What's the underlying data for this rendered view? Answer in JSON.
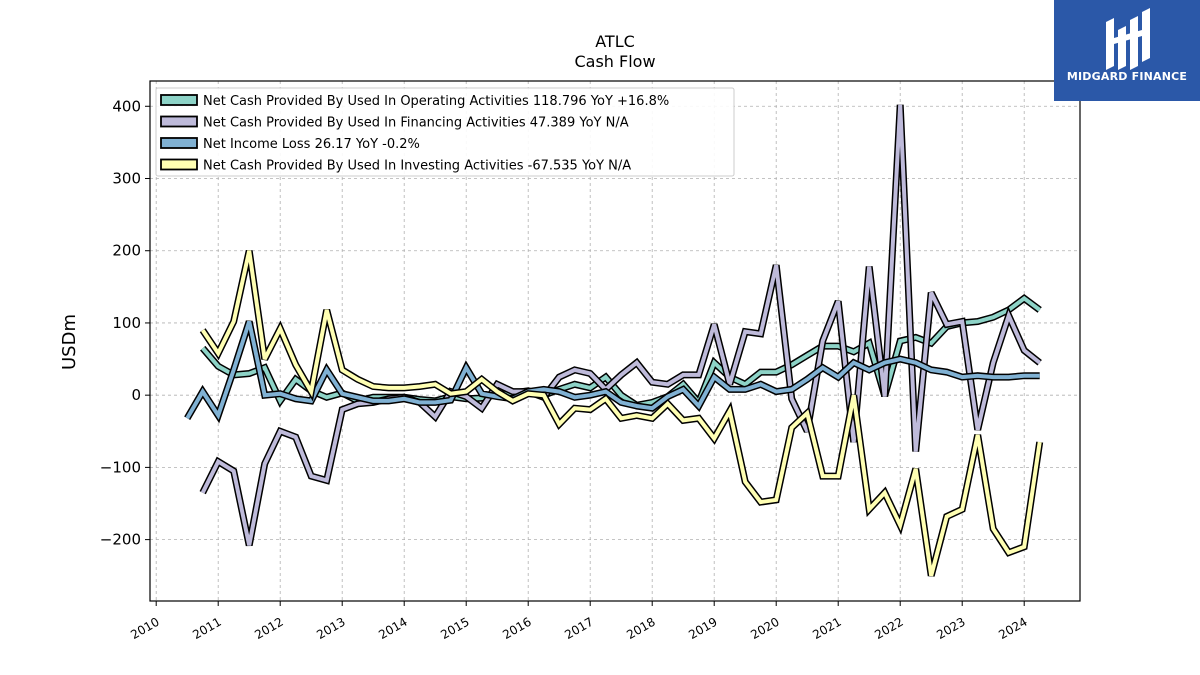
{
  "brand": {
    "name": "MIDGARD FINANCE",
    "bg_color": "#2b58a8"
  },
  "chart_data": {
    "type": "line",
    "title": "ATLC",
    "subtitle": "Cash Flow",
    "xlabel": "",
    "ylabel": "USDm",
    "xlim": [
      2009.9,
      2024.9
    ],
    "ylim": [
      -285,
      435
    ],
    "x_ticks": [
      "2010",
      "2011",
      "2012",
      "2013",
      "2014",
      "2015",
      "2016",
      "2017",
      "2018",
      "2019",
      "2020",
      "2021",
      "2022",
      "2023",
      "2024"
    ],
    "y_ticks": [
      -200,
      -100,
      0,
      100,
      200,
      300,
      400
    ],
    "y_tick_labels": [
      "−200",
      "−100",
      "0",
      "100",
      "200",
      "300",
      "400"
    ],
    "grid": true,
    "legend_position": "top-left",
    "series": [
      {
        "name": "Net Cash Provided By Used In Operating Activities",
        "legend": "Net Cash Provided By Used In Operating Activities  118.796 YoY +16.8%",
        "color": "#8dd3c7",
        "x": [
          2010.75,
          2011.0,
          2011.25,
          2011.5,
          2011.75,
          2012.0,
          2012.25,
          2012.5,
          2012.75,
          2013.0,
          2013.25,
          2013.5,
          2013.75,
          2014.0,
          2014.25,
          2014.5,
          2014.75,
          2015.0,
          2015.25,
          2015.5,
          2015.75,
          2016.0,
          2016.25,
          2016.5,
          2016.75,
          2017.0,
          2017.25,
          2017.5,
          2017.75,
          2018.0,
          2018.25,
          2018.5,
          2018.75,
          2019.0,
          2019.25,
          2019.5,
          2019.75,
          2020.0,
          2020.25,
          2020.5,
          2020.75,
          2021.0,
          2021.25,
          2021.5,
          2021.75,
          2022.0,
          2022.25,
          2022.5,
          2022.75,
          2023.0,
          2023.25,
          2023.5,
          2023.75,
          2024.0,
          2024.25
        ],
        "y": [
          65,
          40,
          28,
          30,
          38,
          -8,
          22,
          6,
          -3,
          3,
          -8,
          -3,
          -3,
          -3,
          -6,
          -8,
          -2,
          -5,
          -4,
          1,
          3,
          6,
          0,
          8,
          15,
          10,
          25,
          0,
          -14,
          -10,
          -2,
          15,
          -10,
          45,
          25,
          15,
          32,
          32,
          42,
          55,
          68,
          68,
          60,
          72,
          -1,
          75,
          80,
          72,
          95,
          100,
          102,
          108,
          118,
          134,
          118
        ]
      },
      {
        "name": "Net Cash Provided By Used In Financing Activities",
        "legend": "Net Cash Provided By Used In Financing Activities  47.389 YoY N/A",
        "color": "#bebada",
        "x": [
          2010.75,
          2011.0,
          2011.25,
          2011.5,
          2011.75,
          2012.0,
          2012.25,
          2012.5,
          2012.75,
          2013.0,
          2013.25,
          2013.5,
          2013.75,
          2014.0,
          2014.25,
          2014.5,
          2014.75,
          2015.0,
          2015.25,
          2015.5,
          2015.75,
          2016.0,
          2016.25,
          2016.5,
          2016.75,
          2017.0,
          2017.25,
          2017.5,
          2017.75,
          2018.0,
          2018.25,
          2018.5,
          2018.75,
          2019.0,
          2019.25,
          2019.5,
          2019.75,
          2020.0,
          2020.25,
          2020.5,
          2020.75,
          2021.0,
          2021.25,
          2021.5,
          2021.75,
          2022.0,
          2022.25,
          2022.5,
          2022.75,
          2023.0,
          2023.25,
          2023.5,
          2023.75,
          2024.0,
          2024.25
        ],
        "y": [
          -135,
          -92,
          -105,
          -208,
          -95,
          -50,
          -58,
          -112,
          -118,
          -20,
          -12,
          -10,
          -5,
          -3,
          -10,
          -30,
          5,
          -2,
          -18,
          15,
          5,
          5,
          -3,
          25,
          35,
          30,
          8,
          28,
          45,
          18,
          15,
          28,
          28,
          98,
          15,
          88,
          85,
          180,
          -5,
          -50,
          75,
          130,
          -65,
          178,
          -2,
          402,
          -78,
          142,
          98,
          102,
          -48,
          45,
          110,
          62,
          45
        ]
      },
      {
        "name": "Net Income Loss",
        "legend": "Net Income Loss  26.17 YoY -0.2%",
        "color": "#80b1d3",
        "x": [
          2010.5,
          2010.75,
          2011.0,
          2011.25,
          2011.5,
          2011.75,
          2012.0,
          2012.25,
          2012.5,
          2012.75,
          2013.0,
          2013.25,
          2013.5,
          2013.75,
          2014.0,
          2014.25,
          2014.5,
          2014.75,
          2015.0,
          2015.25,
          2015.5,
          2015.75,
          2016.0,
          2016.25,
          2016.5,
          2016.75,
          2017.0,
          2017.25,
          2017.5,
          2017.75,
          2018.0,
          2018.25,
          2018.5,
          2018.75,
          2019.0,
          2019.25,
          2019.5,
          2019.75,
          2020.0,
          2020.25,
          2020.5,
          2020.75,
          2021.0,
          2021.25,
          2021.5,
          2021.75,
          2022.0,
          2022.25,
          2022.5,
          2022.75,
          2023.0,
          2023.25,
          2023.5,
          2023.75,
          2024.0,
          2024.25
        ],
        "y": [
          -32,
          5,
          -28,
          35,
          102,
          0,
          2,
          -5,
          -8,
          35,
          2,
          -3,
          -8,
          -8,
          -5,
          -10,
          -10,
          -7,
          38,
          2,
          -2,
          -5,
          5,
          8,
          5,
          -3,
          0,
          5,
          -10,
          -15,
          -18,
          -2,
          8,
          -15,
          25,
          8,
          8,
          15,
          5,
          8,
          22,
          38,
          25,
          45,
          35,
          45,
          50,
          45,
          35,
          32,
          25,
          27,
          25,
          25,
          27,
          27
        ]
      },
      {
        "name": "Net Cash Provided By Used In Investing Activities",
        "legend": "Net Cash Provided By Used In Investing Activities  -67.535 YoY N/A",
        "color": "#ffffb3",
        "x": [
          2010.75,
          2011.0,
          2011.25,
          2011.5,
          2011.75,
          2012.0,
          2012.25,
          2012.5,
          2012.75,
          2013.0,
          2013.25,
          2013.5,
          2013.75,
          2014.0,
          2014.25,
          2014.5,
          2014.75,
          2015.0,
          2015.25,
          2015.5,
          2015.75,
          2016.0,
          2016.25,
          2016.5,
          2016.75,
          2017.0,
          2017.25,
          2017.5,
          2017.75,
          2018.0,
          2018.25,
          2018.5,
          2018.75,
          2019.0,
          2019.25,
          2019.5,
          2019.75,
          2020.0,
          2020.25,
          2020.5,
          2020.75,
          2021.0,
          2021.25,
          2021.5,
          2021.75,
          2022.0,
          2022.25,
          2022.5,
          2022.75,
          2023.0,
          2023.25,
          2023.5,
          2023.75,
          2024.0,
          2024.25
        ],
        "y": [
          90,
          58,
          102,
          200,
          50,
          92,
          42,
          5,
          118,
          35,
          22,
          12,
          10,
          10,
          12,
          15,
          2,
          5,
          22,
          5,
          -8,
          2,
          0,
          -40,
          -18,
          -20,
          -5,
          -32,
          -28,
          -32,
          -12,
          -35,
          -32,
          -60,
          -22,
          -120,
          -148,
          -145,
          -45,
          -25,
          -112,
          -112,
          0,
          -158,
          -135,
          -180,
          -102,
          -250,
          -168,
          -158,
          -55,
          -185,
          -218,
          -210,
          -65
        ]
      }
    ]
  }
}
